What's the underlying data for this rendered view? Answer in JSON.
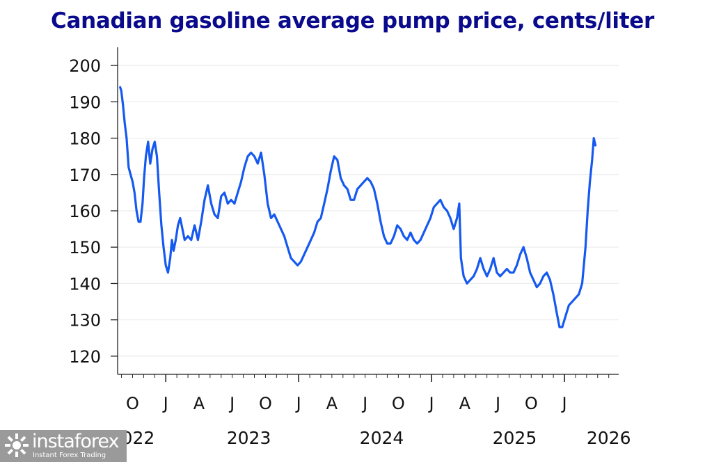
{
  "chart_data": {
    "type": "line",
    "title": "Canadian gasoline average pump price, cents/liter",
    "xlabel": "",
    "ylabel": "",
    "ylim": [
      115,
      205
    ],
    "yticks": [
      120,
      130,
      140,
      150,
      160,
      170,
      180,
      190,
      200
    ],
    "x_range_months": [
      7.65,
      52.9
    ],
    "x_month_labels": [
      {
        "m": 9,
        "label": "O"
      },
      {
        "m": 12,
        "label": "J"
      },
      {
        "m": 15,
        "label": "A"
      },
      {
        "m": 18,
        "label": "J"
      },
      {
        "m": 21,
        "label": "O"
      },
      {
        "m": 24,
        "label": "J"
      },
      {
        "m": 27,
        "label": "A"
      },
      {
        "m": 30,
        "label": "J"
      },
      {
        "m": 33,
        "label": "O"
      },
      {
        "m": 36,
        "label": "J"
      },
      {
        "m": 39,
        "label": "A"
      },
      {
        "m": 42,
        "label": "J"
      },
      {
        "m": 45,
        "label": "O"
      },
      {
        "m": 48,
        "label": "J"
      }
    ],
    "x_year_labels": [
      {
        "m": 9,
        "label": "2022"
      },
      {
        "m": 19.5,
        "label": "2023"
      },
      {
        "m": 31.5,
        "label": "2024"
      },
      {
        "m": 43.5,
        "label": "2025"
      },
      {
        "m": 52,
        "label": "2026"
      }
    ],
    "grid": true,
    "legend": "none",
    "series": [
      {
        "name": "Pump price",
        "color": "#1559f0",
        "points": [
          [
            7.88,
            194
          ],
          [
            7.98,
            193
          ],
          [
            8.14,
            189
          ],
          [
            8.3,
            184
          ],
          [
            8.46,
            180
          ],
          [
            8.64,
            172
          ],
          [
            8.82,
            170
          ],
          [
            9.0,
            168
          ],
          [
            9.18,
            165
          ],
          [
            9.36,
            160
          ],
          [
            9.54,
            157
          ],
          [
            9.72,
            157
          ],
          [
            9.9,
            162
          ],
          [
            10.04,
            169
          ],
          [
            10.2,
            175
          ],
          [
            10.4,
            179
          ],
          [
            10.6,
            173
          ],
          [
            10.8,
            177
          ],
          [
            11.0,
            179
          ],
          [
            11.2,
            175
          ],
          [
            11.4,
            165
          ],
          [
            11.6,
            156
          ],
          [
            11.8,
            150
          ],
          [
            12.0,
            145
          ],
          [
            12.2,
            143
          ],
          [
            12.4,
            147
          ],
          [
            12.55,
            152
          ],
          [
            12.7,
            149
          ],
          [
            12.9,
            152
          ],
          [
            13.1,
            156
          ],
          [
            13.3,
            158
          ],
          [
            13.5,
            155
          ],
          [
            13.7,
            152
          ],
          [
            14.0,
            153
          ],
          [
            14.3,
            152
          ],
          [
            14.6,
            156
          ],
          [
            14.9,
            152
          ],
          [
            15.2,
            157
          ],
          [
            15.5,
            163
          ],
          [
            15.8,
            167
          ],
          [
            16.1,
            162
          ],
          [
            16.4,
            159
          ],
          [
            16.7,
            158
          ],
          [
            17.0,
            164
          ],
          [
            17.3,
            165
          ],
          [
            17.6,
            162
          ],
          [
            17.9,
            163
          ],
          [
            18.2,
            162
          ],
          [
            18.5,
            165
          ],
          [
            18.8,
            168
          ],
          [
            19.1,
            172
          ],
          [
            19.4,
            175
          ],
          [
            19.7,
            176
          ],
          [
            20.0,
            175
          ],
          [
            20.3,
            173
          ],
          [
            20.6,
            176
          ],
          [
            20.9,
            170
          ],
          [
            21.2,
            162
          ],
          [
            21.5,
            158
          ],
          [
            21.8,
            159
          ],
          [
            22.1,
            157
          ],
          [
            22.4,
            155
          ],
          [
            22.7,
            153
          ],
          [
            23.0,
            150
          ],
          [
            23.3,
            147
          ],
          [
            23.6,
            146
          ],
          [
            23.9,
            145
          ],
          [
            24.2,
            146
          ],
          [
            24.5,
            148
          ],
          [
            24.8,
            150
          ],
          [
            25.1,
            152
          ],
          [
            25.4,
            154
          ],
          [
            25.7,
            157
          ],
          [
            26.0,
            158
          ],
          [
            26.3,
            162
          ],
          [
            26.6,
            166
          ],
          [
            26.9,
            171
          ],
          [
            27.2,
            175
          ],
          [
            27.5,
            174
          ],
          [
            27.8,
            169
          ],
          [
            28.1,
            167
          ],
          [
            28.4,
            166
          ],
          [
            28.7,
            163
          ],
          [
            29.0,
            163
          ],
          [
            29.3,
            166
          ],
          [
            29.6,
            167
          ],
          [
            29.9,
            168
          ],
          [
            30.2,
            169
          ],
          [
            30.5,
            168
          ],
          [
            30.8,
            166
          ],
          [
            31.1,
            162
          ],
          [
            31.4,
            157
          ],
          [
            31.7,
            153
          ],
          [
            32.0,
            151
          ],
          [
            32.3,
            151
          ],
          [
            32.6,
            153
          ],
          [
            32.9,
            156
          ],
          [
            33.2,
            155
          ],
          [
            33.5,
            153
          ],
          [
            33.8,
            152
          ],
          [
            34.1,
            154
          ],
          [
            34.4,
            152
          ],
          [
            34.7,
            151
          ],
          [
            35.0,
            152
          ],
          [
            35.3,
            154
          ],
          [
            35.6,
            156
          ],
          [
            35.9,
            158
          ],
          [
            36.2,
            161
          ],
          [
            36.5,
            162
          ],
          [
            36.8,
            163
          ],
          [
            37.1,
            161
          ],
          [
            37.4,
            160
          ],
          [
            37.7,
            158
          ],
          [
            38.0,
            155
          ],
          [
            38.3,
            158
          ],
          [
            38.5,
            162
          ],
          [
            38.65,
            147
          ],
          [
            38.9,
            142
          ],
          [
            39.2,
            140
          ],
          [
            39.5,
            141
          ],
          [
            39.8,
            142
          ],
          [
            40.1,
            144
          ],
          [
            40.4,
            147
          ],
          [
            40.7,
            144
          ],
          [
            41.0,
            142
          ],
          [
            41.3,
            144
          ],
          [
            41.6,
            147
          ],
          [
            41.9,
            143
          ],
          [
            42.2,
            142
          ],
          [
            42.5,
            143
          ],
          [
            42.8,
            144
          ],
          [
            43.1,
            143
          ],
          [
            43.4,
            143
          ],
          [
            43.7,
            145
          ],
          [
            44.0,
            148
          ],
          [
            44.3,
            150
          ],
          [
            44.6,
            147
          ],
          [
            44.9,
            143
          ],
          [
            45.2,
            141
          ],
          [
            45.5,
            139
          ],
          [
            45.8,
            140
          ],
          [
            46.1,
            142
          ],
          [
            46.4,
            143
          ],
          [
            46.7,
            141
          ],
          [
            47.0,
            137
          ],
          [
            47.3,
            132
          ],
          [
            47.55,
            128
          ],
          [
            47.8,
            128
          ],
          [
            48.1,
            131
          ],
          [
            48.4,
            134
          ],
          [
            48.7,
            135
          ],
          [
            49.0,
            136
          ],
          [
            49.3,
            137
          ],
          [
            49.6,
            140
          ],
          [
            49.9,
            150
          ],
          [
            50.1,
            160
          ],
          [
            50.3,
            168
          ],
          [
            50.5,
            174
          ],
          [
            50.65,
            180
          ],
          [
            50.8,
            178
          ]
        ]
      }
    ]
  },
  "watermark": {
    "brand": "instaforex",
    "tagline": "Instant Forex Trading"
  }
}
